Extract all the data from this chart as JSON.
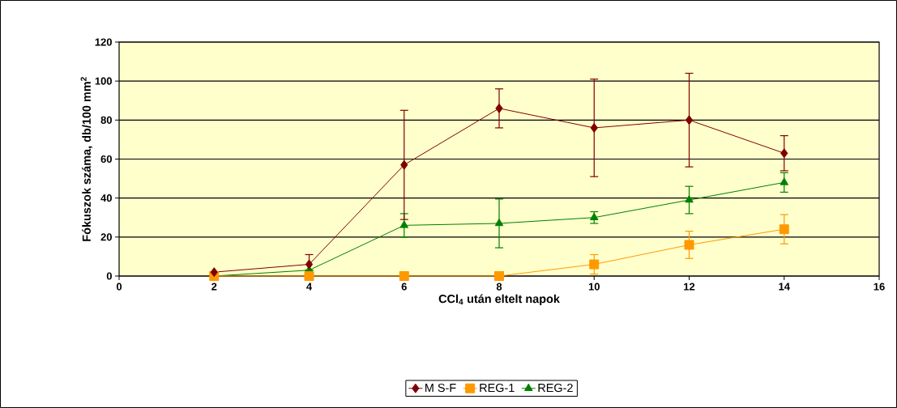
{
  "chart_data": {
    "type": "line",
    "xlabel": "CCl$_{4}$ után eltelt napok",
    "ylabel": "Fókuszok száma, db/100 mm$^{2}$",
    "x": [
      2,
      4,
      6,
      8,
      10,
      12,
      14
    ],
    "series": [
      {
        "name": "M S-F",
        "color": "#800000",
        "marker": "diamond",
        "values": [
          2,
          6,
          57,
          86,
          76,
          80,
          63
        ],
        "errors": [
          null,
          5,
          28,
          10,
          25,
          24,
          9
        ]
      },
      {
        "name": "REG-1",
        "color": "#ff9900",
        "marker": "square",
        "values": [
          0,
          0,
          0,
          0,
          6,
          16,
          24
        ],
        "errors": [
          null,
          null,
          null,
          null,
          5,
          7,
          7.5
        ]
      },
      {
        "name": "REG-2",
        "color": "#008000",
        "marker": "triangle",
        "values": [
          0,
          3,
          26,
          27,
          30,
          39,
          48
        ],
        "errors": [
          null,
          null,
          6,
          12.5,
          3,
          7,
          5
        ]
      }
    ],
    "xlim": [
      0,
      16
    ],
    "xticks": [
      0,
      2,
      4,
      6,
      8,
      10,
      12,
      14,
      16
    ],
    "ylim": [
      0,
      120
    ],
    "yticks": [
      0,
      20,
      40,
      60,
      80,
      100,
      120
    ],
    "grid": "y",
    "legend": "bottom",
    "line_style": "solid"
  }
}
